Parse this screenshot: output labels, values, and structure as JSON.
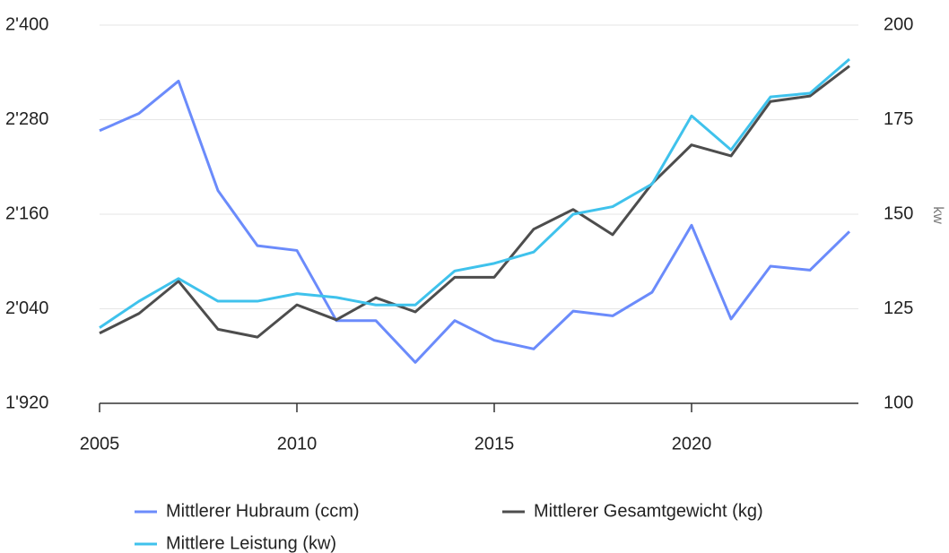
{
  "chart_data": {
    "type": "line",
    "x": [
      2005,
      2006,
      2007,
      2008,
      2009,
      2010,
      2011,
      2012,
      2013,
      2014,
      2015,
      2016,
      2017,
      2018,
      2019,
      2020,
      2021,
      2022,
      2023,
      2024
    ],
    "xlim": [
      2005,
      2024
    ],
    "xticks": [
      2005,
      2010,
      2015,
      2020
    ],
    "ylim": [
      1920,
      2400
    ],
    "yticks": [
      {
        "value": 1920,
        "label": "1'920"
      },
      {
        "value": 2040,
        "label": "2'040"
      },
      {
        "value": 2160,
        "label": "2'160"
      },
      {
        "value": 2280,
        "label": "2'280"
      },
      {
        "value": 2400,
        "label": "2'400"
      }
    ],
    "y2lim": [
      100,
      200
    ],
    "y2ticks": [
      100,
      125,
      150,
      175,
      200
    ],
    "y2label": "kw",
    "grid": true,
    "legend": "bottom",
    "series": [
      {
        "name": "Mittlerer Hubraum (ccm)",
        "color": "#6b8bfb",
        "values": [
          2266,
          2288,
          2329,
          2190,
          2120,
          2114,
          2025,
          2025,
          1972,
          2025,
          2000,
          1989,
          2037,
          2031,
          2061,
          2146,
          2027,
          2094,
          2089,
          2138
        ]
      },
      {
        "name": "Mittlerer Gesamtgewicht (kg)",
        "color": "#4d4d4d",
        "values": [
          2009,
          2034,
          2075,
          2014,
          2004,
          2045,
          2026,
          2054,
          2036,
          2080,
          2080,
          2141,
          2166,
          2134,
          2199,
          2248,
          2234,
          2303,
          2310,
          2348
        ]
      },
      {
        "name": "Mittlere Leistung (kw)",
        "color": "#3fc2ec",
        "axis": "y2",
        "values": [
          120,
          127,
          133,
          127,
          127,
          129,
          128,
          126,
          126,
          135,
          137,
          140,
          150,
          152,
          158,
          176,
          167,
          181,
          182,
          191
        ]
      }
    ]
  }
}
